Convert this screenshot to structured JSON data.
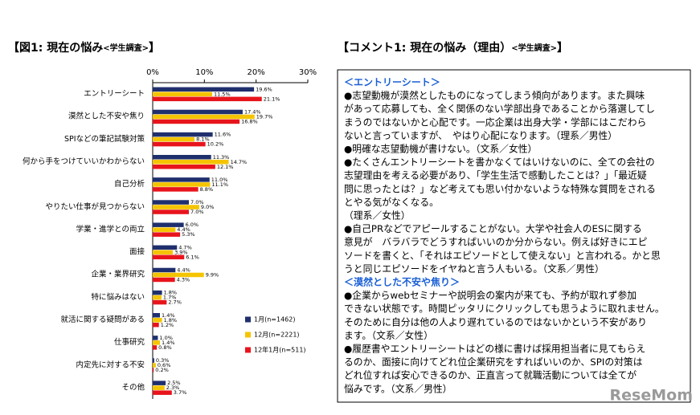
{
  "chart_data": {
    "type": "barh",
    "title": [
      "【図1: 現在の悩み",
      "<学生調査>",
      "】"
    ],
    "categories": [
      "エントリーシート",
      "漠然とした不安や焦り",
      "SPIなどの筆記試験対策",
      "何から手をつけていいかわからない",
      "自己分析",
      "やりたい仕事が見つからない",
      "学業・進学との両立",
      "面接",
      "企業・業界研究",
      "特に悩みはない",
      "就活に関する疑問がある",
      "仕事研究",
      "内定先に対する不安",
      "その他"
    ],
    "series": [
      {
        "name": "1月(n=1462)",
        "color": "#1f2f6e",
        "values": [
          19.6,
          17.4,
          11.6,
          11.3,
          11.0,
          7.0,
          6.0,
          4.7,
          4.4,
          1.8,
          1.4,
          1.0,
          0.3,
          2.5
        ],
        "value_labels": [
          "19.6%",
          "17.4%",
          "11.6%",
          "11.3%",
          "11.0%",
          "7.0%",
          "6.0%",
          "4.7%",
          "4.4%",
          "1.8%",
          "1.4%",
          "1.0%",
          "0.3%",
          "2.5%"
        ]
      },
      {
        "name": "12月(n=2221)",
        "color": "#f5c400",
        "values": [
          11.5,
          19.7,
          8.1,
          14.7,
          11.1,
          9.0,
          4.4,
          3.9,
          9.9,
          1.7,
          1.8,
          1.4,
          0.6,
          2.3
        ],
        "value_labels": [
          "11.5%",
          "19.7%",
          "8.1%",
          "14.7%",
          "11.1%",
          "9.0%",
          "4.4%",
          "3.9%",
          "9.9%",
          "1.7%",
          "1.8%",
          "1.4%",
          "0.6%",
          "2.3%"
        ]
      },
      {
        "name": "12年1月(n=511)",
        "color": "#e8141c",
        "values": [
          21.1,
          16.8,
          10.2,
          12.1,
          8.8,
          7.0,
          5.3,
          6.1,
          4.3,
          2.7,
          1.2,
          0.8,
          0.2,
          3.7
        ],
        "value_labels": [
          "21.1%",
          "16.8%",
          "10.2%",
          "12.1%",
          "8.8%",
          "7.0%",
          "5.3%",
          "6.1%",
          "4.3%",
          "2.7%",
          "1.2%",
          "0.8%",
          "0.2%",
          "3.7%"
        ]
      }
    ],
    "xlim": [
      0,
      30
    ],
    "xticks": [
      {
        "value": 0,
        "label": "0%"
      },
      {
        "value": 10,
        "label": "10%"
      },
      {
        "value": 20,
        "label": "20%"
      },
      {
        "value": 30,
        "label": "30%"
      }
    ]
  },
  "comment": {
    "title": [
      "【コメント1: 現在の悩み（理由）",
      "<学生調査>",
      "】"
    ],
    "sections": [
      {
        "heading": "＜エントリーシート＞",
        "lines": [
          "●志望動機が漠然としたものになってしまう傾向があります。また興味",
          "があって応募しても、全く関係のない学部出身であることから落選してし",
          "まうのではないかと心配です。一応企業は出身大学・学部にはこだわら",
          "ないと言っていますが、　やはり心配になります。（理系／男性）",
          "●明確な志望動機が書けない。（文系／女性）",
          "●たくさんエントリーシートを書かなくてはいけないのに、全ての会社の",
          "志望理由を考える必要があり、「学生生活で感動したことは？」「最近疑",
          "問に思ったとは？」など考えても思い付かないような特殊な質問をされる",
          "とやる気がなくなる。",
          "（理系／女性）",
          "●自己PRなどでアピールすることがない。大学や社会人のESに関する",
          "意見が　バラバラでどうすればいいのか分からない。例えば好きにエピ",
          "ソードを書くと、「それはエピソードとして使えない」と言われる。かと思",
          "うと同じエピソードをイヤねと言う人もいる。（文系／男性）"
        ]
      },
      {
        "heading": "＜漠然とした不安や焦り＞",
        "lines": [
          "●企業からwebセミナーや説明会の案内が来ても、予約が取れず参加",
          "できない状態です。時間ピッタリにクリックしても思うように取れません。",
          "そのために自分は他の人より遅れているのではないかという不安があり",
          "ます。（文系／女性）",
          "●履歴書やエントリーシートはどの様に書けば採用担当者に見てもらえ",
          "るのか、面接に向けてどれ位企業研究をすればいいのか、SPIの対策は",
          "どれ位すれば安心できるのか、正直言って就職活動については全てが",
          "悩みです。（文系／男性）"
        ]
      }
    ]
  },
  "watermark": "ReseMom"
}
